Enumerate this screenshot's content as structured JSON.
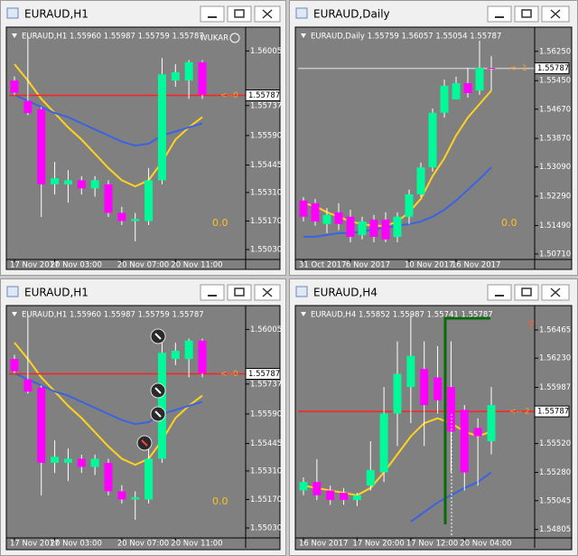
{
  "windows": [
    {
      "title": "EURAUD,H1"
    },
    {
      "title": "EURAUD,Daily"
    },
    {
      "title": "EURAUD,H1"
    },
    {
      "title": "EURAUD,H4"
    }
  ],
  "chart_data": [
    {
      "type": "candlestick",
      "header": "EURAUD,H1  1.55960 1.55987 1.55759 1.55787",
      "corner_text": "WUKAR",
      "categories": [
        "17 Nov 2017",
        null,
        null,
        "20 Nov 03:00",
        null,
        null,
        null,
        null,
        "20 Nov 07:00",
        null,
        null,
        null,
        "20 Nov 11:00",
        null,
        null
      ],
      "open": [
        1.5586,
        1.5576,
        1.5572,
        1.5535,
        1.5535,
        1.5537,
        1.5533,
        1.5535,
        1.5521,
        1.5517,
        1.5517,
        1.5537,
        1.5586,
        1.5586,
        1.5595
      ],
      "high": [
        1.5588,
        1.5608,
        1.5573,
        1.5546,
        1.5542,
        1.5539,
        1.5539,
        1.5537,
        1.5524,
        1.5521,
        1.5543,
        1.5597,
        1.5594,
        1.5596,
        1.5596
      ],
      "low": [
        1.5579,
        1.5569,
        1.5519,
        1.553,
        1.5526,
        1.553,
        1.5529,
        1.5519,
        1.5515,
        1.5507,
        1.5515,
        1.5535,
        1.5583,
        1.5577,
        1.5577
      ],
      "close": [
        1.558,
        1.557,
        1.5535,
        1.5538,
        1.5537,
        1.5533,
        1.5537,
        1.5521,
        1.5517,
        1.5518,
        1.5537,
        1.5589,
        1.559,
        1.5595,
        1.5579
      ],
      "up_color": "#00fa9a",
      "down_color": "#ff00ff",
      "ma": [
        {
          "color": "#ffd21f",
          "values": [
            1.5594,
            1.5586,
            1.5577,
            1.557,
            1.5563,
            1.5557,
            1.555,
            1.5543,
            1.5537,
            1.5534,
            1.5537,
            1.5546,
            1.5557,
            1.5563,
            1.5568
          ]
        },
        {
          "color": "#3a63e0",
          "values": [
            1.5579,
            1.5576,
            1.5573,
            1.557,
            1.5568,
            1.5565,
            1.5562,
            1.5559,
            1.5556,
            1.5554,
            1.5555,
            1.5559,
            1.5561,
            1.5563,
            1.5565
          ]
        }
      ],
      "ylim": [
        1.5499,
        1.561
      ],
      "yticks": [
        1.56005,
        1.55737,
        {
          "value": 1.5559,
          "label": "1.55590"
        },
        1.55445,
        {
          "value": 1.5531,
          "label": "1.55310"
        },
        {
          "value": 1.5517,
          "label": "1.55170"
        },
        {
          "value": 1.5503,
          "label": "1.55030"
        }
      ],
      "price": 1.55787,
      "price_line_color": "#ff2020",
      "side_text": "<--0",
      "indicator_text": "0.0"
    },
    {
      "type": "candlestick",
      "header": "EURAUD,Daily  1.55759 1.56057 1.55054 1.55787",
      "categories": [
        "31 Oct 2017",
        null,
        null,
        null,
        "6 Nov 2017",
        null,
        null,
        null,
        null,
        "10 Nov 2017",
        null,
        null,
        null,
        "16 Nov 2017",
        null,
        null,
        null
      ],
      "open": [
        1.5217,
        1.521,
        1.5153,
        1.5185,
        1.5173,
        1.5123,
        1.5165,
        1.5165,
        1.5118,
        1.5173,
        1.5234,
        1.5308,
        1.5457,
        1.5494,
        1.5538,
        1.5518,
        1.558
      ],
      "high": [
        1.5227,
        1.5222,
        1.5197,
        1.521,
        1.5192,
        1.5173,
        1.5178,
        1.5185,
        1.5185,
        1.5247,
        1.5321,
        1.5469,
        1.5548,
        1.5556,
        1.558,
        1.5654,
        1.5612
      ],
      "low": [
        1.516,
        1.5148,
        1.5128,
        1.5136,
        1.5103,
        1.5111,
        1.5103,
        1.5103,
        1.5103,
        1.5153,
        1.5227,
        1.5296,
        1.5444,
        1.5494,
        1.5499,
        1.5506,
        1.5518
      ],
      "close": [
        1.5173,
        1.516,
        1.5178,
        1.5153,
        1.5118,
        1.516,
        1.5118,
        1.5111,
        1.5173,
        1.5234,
        1.5308,
        1.5457,
        1.5531,
        1.5538,
        1.5511,
        1.558,
        1.5578
      ],
      "up_color": "#00fa9a",
      "down_color": "#ff00ff",
      "ma": [
        {
          "color": "#ffd21f",
          "values": [
            1.521,
            1.5202,
            1.5185,
            1.5173,
            1.516,
            1.5153,
            1.5148,
            1.5148,
            1.516,
            1.5185,
            1.5222,
            1.5284,
            1.5333,
            1.5395,
            1.5444,
            1.5481,
            1.5518
          ]
        },
        {
          "color": "#3a63e0",
          "values": [
            1.5118,
            1.5118,
            1.5123,
            1.5128,
            1.5128,
            1.5133,
            1.5138,
            1.5143,
            1.5148,
            1.5153,
            1.516,
            1.5173,
            1.5192,
            1.5217,
            1.5247,
            1.5276,
            1.5308
          ]
        }
      ],
      "ylim": [
        1.5061,
        1.5679
      ],
      "yticks": [
        {
          "value": 1.5625,
          "label": "1.56250"
        },
        {
          "value": 1.5545,
          "label": "1.55450"
        },
        {
          "value": 1.5467,
          "label": "1.54670"
        },
        {
          "value": 1.5387,
          "label": "1.53870"
        },
        {
          "value": 1.5309,
          "label": "1.53090"
        },
        {
          "value": 1.5229,
          "label": "1.52290"
        },
        {
          "value": 1.5149,
          "label": "1.51490"
        },
        {
          "value": 1.5071,
          "label": "1.50710"
        }
      ],
      "price": 1.55787,
      "price_line_color": "#c8c8c8",
      "side_text": "<--1",
      "indicator_text": "0.0"
    },
    {
      "type": "candlestick",
      "header": "EURAUD,H1  1.55960 1.55987 1.55759 1.55787",
      "categories": [
        "17 Nov 2017",
        null,
        null,
        "20 Nov 03:00",
        null,
        null,
        null,
        null,
        "20 Nov 07:00",
        null,
        null,
        null,
        "20 Nov 11:00",
        null,
        null
      ],
      "open": [
        1.5586,
        1.5576,
        1.5572,
        1.5535,
        1.5535,
        1.5537,
        1.5533,
        1.5535,
        1.5521,
        1.5517,
        1.5517,
        1.5537,
        1.5586,
        1.5586,
        1.5595
      ],
      "high": [
        1.5588,
        1.5608,
        1.5573,
        1.5546,
        1.5542,
        1.5539,
        1.5539,
        1.5537,
        1.5524,
        1.5521,
        1.5543,
        1.5597,
        1.5594,
        1.5596,
        1.5596
      ],
      "low": [
        1.5579,
        1.5569,
        1.5519,
        1.553,
        1.5526,
        1.553,
        1.5529,
        1.5519,
        1.5515,
        1.5507,
        1.5515,
        1.5535,
        1.5583,
        1.5577,
        1.5577
      ],
      "close": [
        1.558,
        1.557,
        1.5535,
        1.5538,
        1.5537,
        1.5533,
        1.5537,
        1.5521,
        1.5517,
        1.5518,
        1.5537,
        1.5589,
        1.559,
        1.5595,
        1.5579
      ],
      "up_color": "#00fa9a",
      "down_color": "#ff00ff",
      "ma": [
        {
          "color": "#ffd21f",
          "values": [
            1.5594,
            1.5586,
            1.5577,
            1.557,
            1.5563,
            1.5557,
            1.555,
            1.5543,
            1.5537,
            1.5534,
            1.5537,
            1.5546,
            1.5557,
            1.5563,
            1.5568
          ]
        },
        {
          "color": "#3a63e0",
          "values": [
            1.5579,
            1.5576,
            1.5573,
            1.557,
            1.5568,
            1.5565,
            1.5562,
            1.5559,
            1.5556,
            1.5554,
            1.5555,
            1.5559,
            1.5561,
            1.5563,
            1.5565
          ]
        }
      ],
      "ylim": [
        1.5499,
        1.561
      ],
      "yticks": [
        1.56005,
        1.55737,
        {
          "value": 1.5559,
          "label": "1.55590"
        },
        1.55445,
        {
          "value": 1.5531,
          "label": "1.55310"
        },
        {
          "value": 1.5517,
          "label": "1.55170"
        },
        {
          "value": 1.5503,
          "label": "1.55030"
        }
      ],
      "price": 1.55787,
      "price_line_color": "#ff2020",
      "side_text": "<--0",
      "indicator_text": "0.0"
    },
    {
      "type": "candlestick",
      "header": "EURAUD,H4  1.55852 1.55987 1.55741 1.55787",
      "top_right_text": "F",
      "categories": [
        "16 Nov 2017",
        null,
        null,
        null,
        "17 Nov 20:00",
        null,
        null,
        null,
        "17 Nov 12:00",
        null,
        null,
        null,
        "20 Nov 04:00",
        null,
        null
      ],
      "open": [
        1.5513,
        1.552,
        1.5513,
        1.5511,
        1.5505,
        1.5517,
        1.5528,
        1.5577,
        1.5599,
        1.5614,
        1.5607,
        1.5599,
        1.558,
        1.5565,
        1.5554
      ],
      "high": [
        1.5524,
        1.5539,
        1.5517,
        1.5515,
        1.5511,
        1.5554,
        1.5599,
        1.5637,
        1.5659,
        1.5637,
        1.5633,
        1.5637,
        1.5584,
        1.5573,
        1.5599
      ],
      "low": [
        1.5509,
        1.5505,
        1.5501,
        1.5501,
        1.55,
        1.5513,
        1.552,
        1.555,
        1.5569,
        1.555,
        1.5577,
        1.5528,
        1.5513,
        1.5517,
        1.5543
      ],
      "close": [
        1.552,
        1.5509,
        1.5505,
        1.5505,
        1.5509,
        1.553,
        1.5577,
        1.561,
        1.5625,
        1.5584,
        1.5588,
        1.5562,
        1.5528,
        1.5558,
        1.5584
      ],
      "up_color": "#00fa9a",
      "down_color": "#ff00ff",
      "ma": [
        {
          "color": "#ffd21f",
          "values": [
            1.5517,
            1.5515,
            1.5513,
            1.5511,
            1.5509,
            1.5515,
            1.5528,
            1.5543,
            1.5558,
            1.5569,
            1.5573,
            1.5569,
            1.5562,
            1.5558,
            1.5562
          ]
        },
        {
          "color": "#3a63e0",
          "values": [
            null,
            null,
            null,
            null,
            null,
            null,
            null,
            null,
            1.5487,
            1.5495,
            1.5503,
            1.5509,
            1.5515,
            1.552,
            1.5528
          ]
        }
      ],
      "ylim": [
        1.5475,
        1.5663
      ],
      "yticks": [
        1.56465,
        {
          "value": 1.5623,
          "label": "1.56230"
        },
        1.55987,
        {
          "value": 1.5552,
          "label": "1.55520"
        },
        {
          "value": 1.5528,
          "label": "1.55280"
        },
        1.55045,
        1.54805
      ],
      "price": 1.55787,
      "price_line_color": "#ff2020",
      "side_text": "<-- 2"
    }
  ]
}
